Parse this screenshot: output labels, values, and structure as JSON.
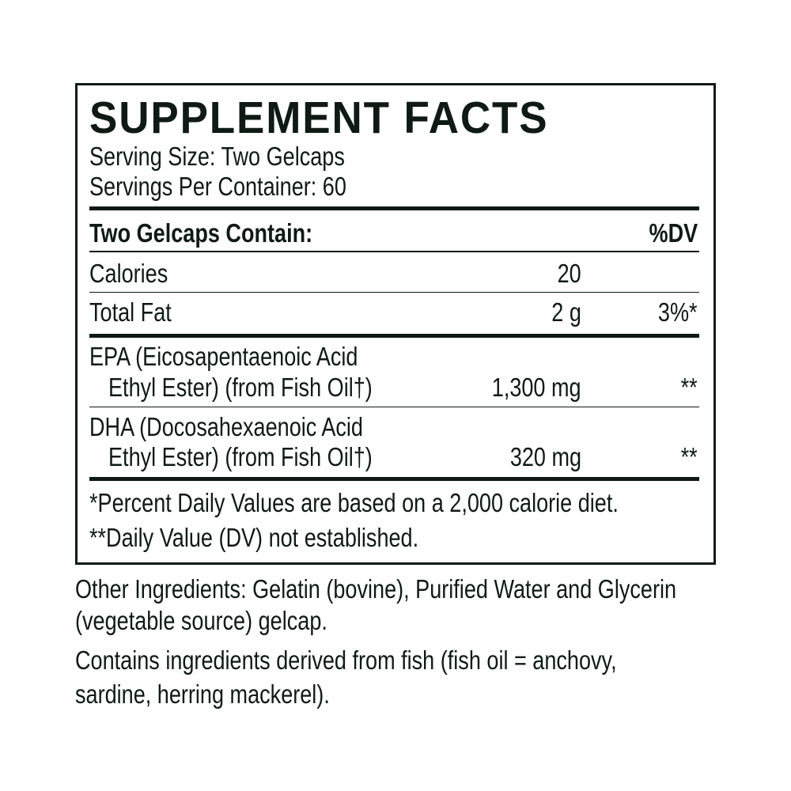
{
  "title": "SUPPLEMENT FACTS",
  "serving_size": "Serving Size: Two Gelcaps",
  "servings_per_container": "Servings Per Container: 60",
  "header": {
    "label": "Two Gelcaps Contain:",
    "dv": "%DV"
  },
  "rows": [
    {
      "name": "Calories",
      "amount": "20",
      "dv": ""
    },
    {
      "name": "Total Fat",
      "amount": "2 g",
      "dv": "3%*"
    },
    {
      "name_line1": "EPA (Eicosapentaenoic Acid",
      "name_line2": "Ethyl Ester) (from Fish Oil†)",
      "amount": "1,300 mg",
      "dv": "**"
    },
    {
      "name_line1": "DHA (Docosahexaenoic Acid",
      "name_line2": "Ethyl Ester) (from Fish Oil†)",
      "amount": "320 mg",
      "dv": "**"
    }
  ],
  "footnotes": [
    "*Percent Daily Values are based on a 2,000 calorie diet.",
    "**Daily Value (DV) not established."
  ],
  "other_ingredients": [
    "Other Ingredients: Gelatin (bovine), Purified Water and Glycerin",
    "(vegetable source) gelcap."
  ],
  "allergen": [
    "Contains ingredients derived from fish (fish oil = anchovy,",
    "sardine, herring mackerel)."
  ],
  "colors": {
    "ink": "#0f1a15",
    "background": "#ffffff"
  }
}
